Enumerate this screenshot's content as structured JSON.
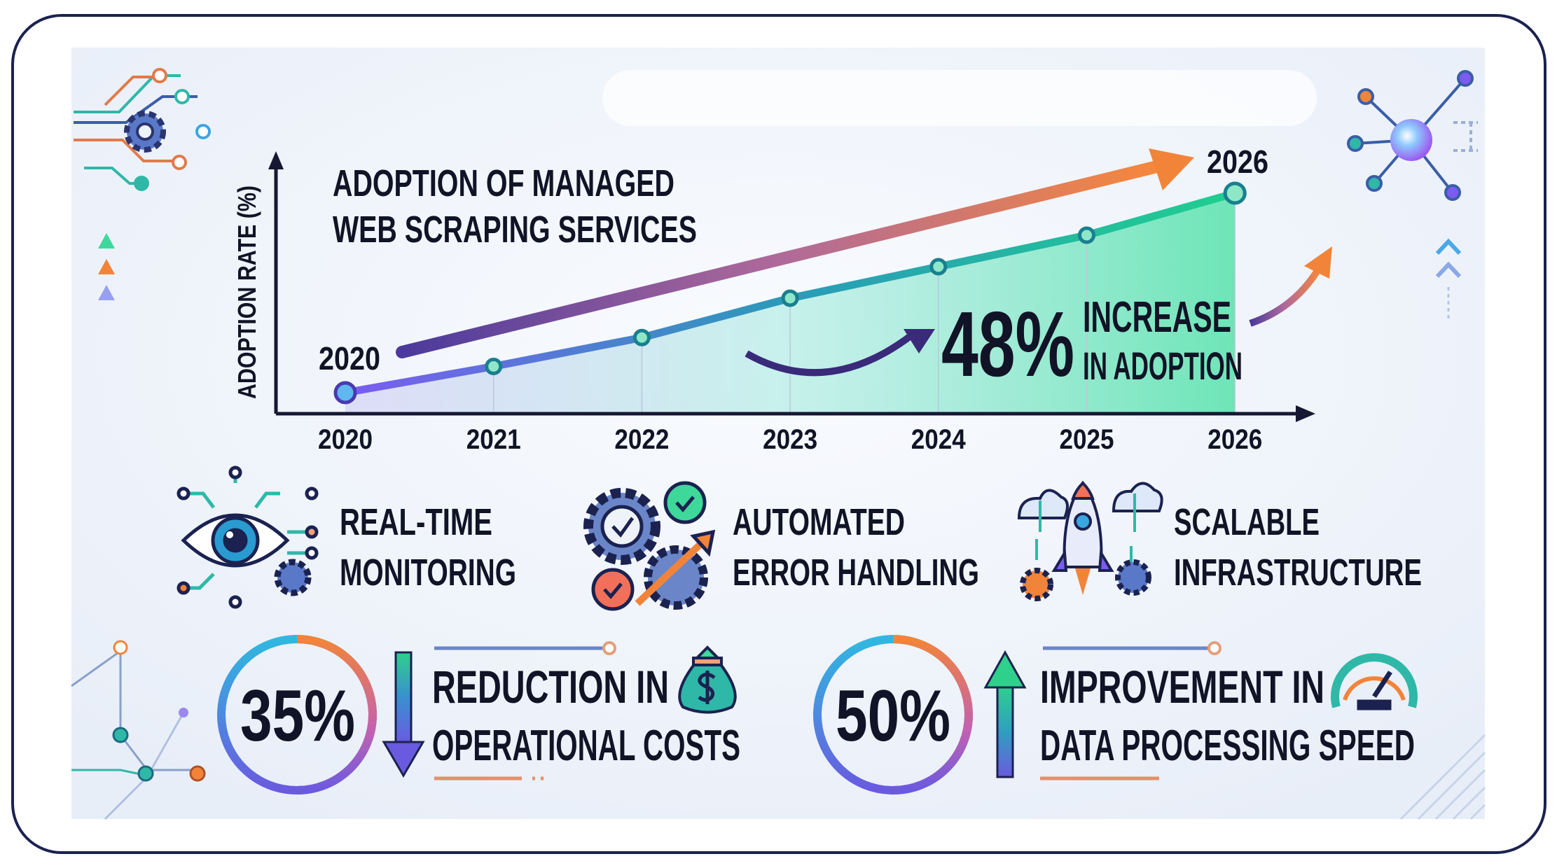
{
  "chart_data": {
    "type": "area",
    "title": "ADOPTION OF MANAGED WEB SCRAPING SERVICES",
    "xlabel": "",
    "ylabel": "ADOPTION RATE (%)",
    "categories": [
      "2020",
      "2021",
      "2022",
      "2023",
      "2024",
      "2025",
      "2026"
    ],
    "values": [
      8,
      18,
      29,
      44,
      56,
      68,
      84
    ],
    "ylim": [
      0,
      100
    ],
    "grid": false,
    "start_label": "2020",
    "end_label": "2026",
    "annotation": {
      "value": "48%",
      "line1": "INCREASE",
      "line2": "IN ADOPTION"
    },
    "colors": {
      "line_start": "#7b5cf0",
      "line_end": "#1fcf8f",
      "fill": "#6ee7c1",
      "trend_arrow": "#f2843a",
      "axis": "#151733"
    }
  },
  "features": [
    {
      "icon": "eye-icon",
      "line1": "REAL-TIME",
      "line2": "MONITORING"
    },
    {
      "icon": "gears-check-icon",
      "line1": "AUTOMATED",
      "line2": "ERROR HANDLING"
    },
    {
      "icon": "rocket-cloud-icon",
      "line1": "SCALABLE",
      "line2": "INFRASTRUCTURE"
    }
  ],
  "stats": [
    {
      "value": "35%",
      "direction": "down",
      "line1": "REDUCTION IN",
      "line2": "OPERATIONAL COSTS",
      "icon": "money-bag-icon"
    },
    {
      "value": "50%",
      "direction": "up",
      "line1": "IMPROVEMENT IN",
      "line2": "DATA PROCESSING SPEED",
      "icon": "speedometer-icon"
    }
  ],
  "colors": {
    "frame": "#1b2250",
    "background": "#eef3fa",
    "accent_orange": "#f2843a",
    "accent_teal": "#22c7a9",
    "accent_purple": "#7b5cf0",
    "accent_blue": "#3aa7e0"
  }
}
